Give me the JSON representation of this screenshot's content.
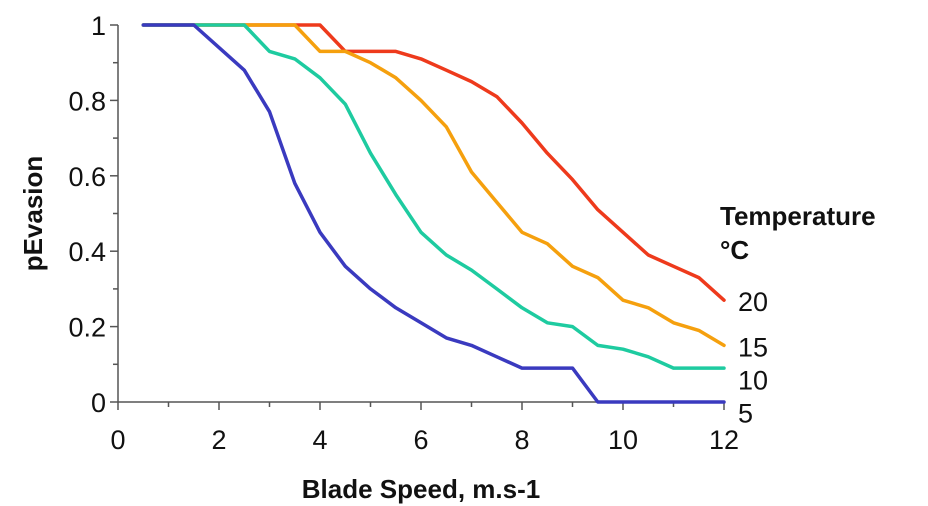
{
  "chart_data": {
    "type": "line",
    "title": "",
    "xlabel": "Blade Speed,  m.s-1",
    "ylabel": "pEvasion",
    "xlim": [
      0,
      12
    ],
    "ylim": [
      0,
      1
    ],
    "x_ticks": [
      0,
      2,
      4,
      6,
      8,
      10,
      12
    ],
    "y_ticks": [
      0,
      0.2,
      0.4,
      0.6,
      0.8,
      1
    ],
    "x_tick_labels": [
      "0",
      "2",
      "4",
      "6",
      "8",
      "10",
      "12"
    ],
    "y_tick_labels": [
      "0",
      "0.2",
      "0.4",
      "0.6",
      "0.8",
      "1"
    ],
    "grid": false,
    "legend": {
      "title_line1": "Temperature",
      "title_line2": "°C",
      "placement": "right, at line ends"
    },
    "series": [
      {
        "name": "20",
        "color": "#ee3a1c",
        "x": [
          0.5,
          1,
          1.5,
          2,
          2.5,
          3,
          3.5,
          4,
          4.5,
          5,
          5.5,
          6,
          6.5,
          7,
          7.5,
          8,
          8.5,
          9,
          9.5,
          10,
          10.5,
          11,
          11.5,
          12
        ],
        "y": [
          1,
          1,
          1,
          1,
          1,
          1,
          1,
          1,
          0.93,
          0.93,
          0.93,
          0.91,
          0.88,
          0.85,
          0.81,
          0.74,
          0.66,
          0.59,
          0.51,
          0.45,
          0.39,
          0.36,
          0.33,
          0.27
        ]
      },
      {
        "name": "15",
        "color": "#f5a00e",
        "x": [
          0.5,
          1,
          1.5,
          2,
          2.5,
          3,
          3.5,
          4,
          4.5,
          5,
          5.5,
          6,
          6.5,
          7,
          7.5,
          8,
          8.5,
          9,
          9.5,
          10,
          10.5,
          11,
          11.5,
          12
        ],
        "y": [
          1,
          1,
          1,
          1,
          1,
          1,
          1,
          0.93,
          0.93,
          0.9,
          0.86,
          0.8,
          0.73,
          0.61,
          0.53,
          0.45,
          0.42,
          0.36,
          0.33,
          0.27,
          0.25,
          0.21,
          0.19,
          0.15
        ]
      },
      {
        "name": "10",
        "color": "#1ecba0",
        "x": [
          0.5,
          1,
          1.5,
          2,
          2.5,
          3,
          3.5,
          4,
          4.5,
          5,
          5.5,
          6,
          6.5,
          7,
          7.5,
          8,
          8.5,
          9,
          9.5,
          10,
          10.5,
          11,
          11.5,
          12
        ],
        "y": [
          1,
          1,
          1,
          1,
          1,
          0.93,
          0.91,
          0.86,
          0.79,
          0.66,
          0.55,
          0.45,
          0.39,
          0.35,
          0.3,
          0.25,
          0.21,
          0.2,
          0.15,
          0.14,
          0.12,
          0.09,
          0.09,
          0.09
        ]
      },
      {
        "name": "5",
        "color": "#3a3abf",
        "x": [
          0.5,
          1,
          1.5,
          2,
          2.5,
          3,
          3.5,
          4,
          4.5,
          5,
          5.5,
          6,
          6.5,
          7,
          7.5,
          8,
          8.5,
          9,
          9.5,
          10,
          10.5,
          11,
          11.5,
          12
        ],
        "y": [
          1,
          1,
          1,
          0.94,
          0.88,
          0.77,
          0.58,
          0.45,
          0.36,
          0.3,
          0.25,
          0.21,
          0.17,
          0.15,
          0.12,
          0.09,
          0.09,
          0.09,
          0,
          0,
          0,
          0,
          0,
          0
        ]
      }
    ]
  }
}
